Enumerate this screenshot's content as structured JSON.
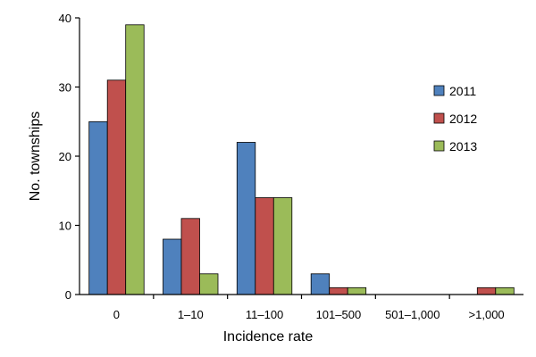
{
  "chart_data": {
    "type": "bar",
    "title": "",
    "xlabel": "Incidence rate",
    "ylabel": "No. townships",
    "categories": [
      "0",
      "1–10",
      "11–100",
      "101–500",
      "501–1,000",
      ">1,000"
    ],
    "series": [
      {
        "name": "2011",
        "color": "#4f81bd",
        "values": [
          25,
          8,
          22,
          3,
          0,
          0
        ]
      },
      {
        "name": "2012",
        "color": "#c0504d",
        "values": [
          31,
          11,
          14,
          1,
          0,
          1
        ]
      },
      {
        "name": "2013",
        "color": "#9bbb59",
        "values": [
          39,
          3,
          14,
          1,
          0,
          1
        ]
      }
    ],
    "ylim": [
      0,
      40
    ],
    "yticks": [
      "0",
      "10",
      "20",
      "30",
      "40"
    ],
    "grid": false,
    "legend_position": "right"
  }
}
